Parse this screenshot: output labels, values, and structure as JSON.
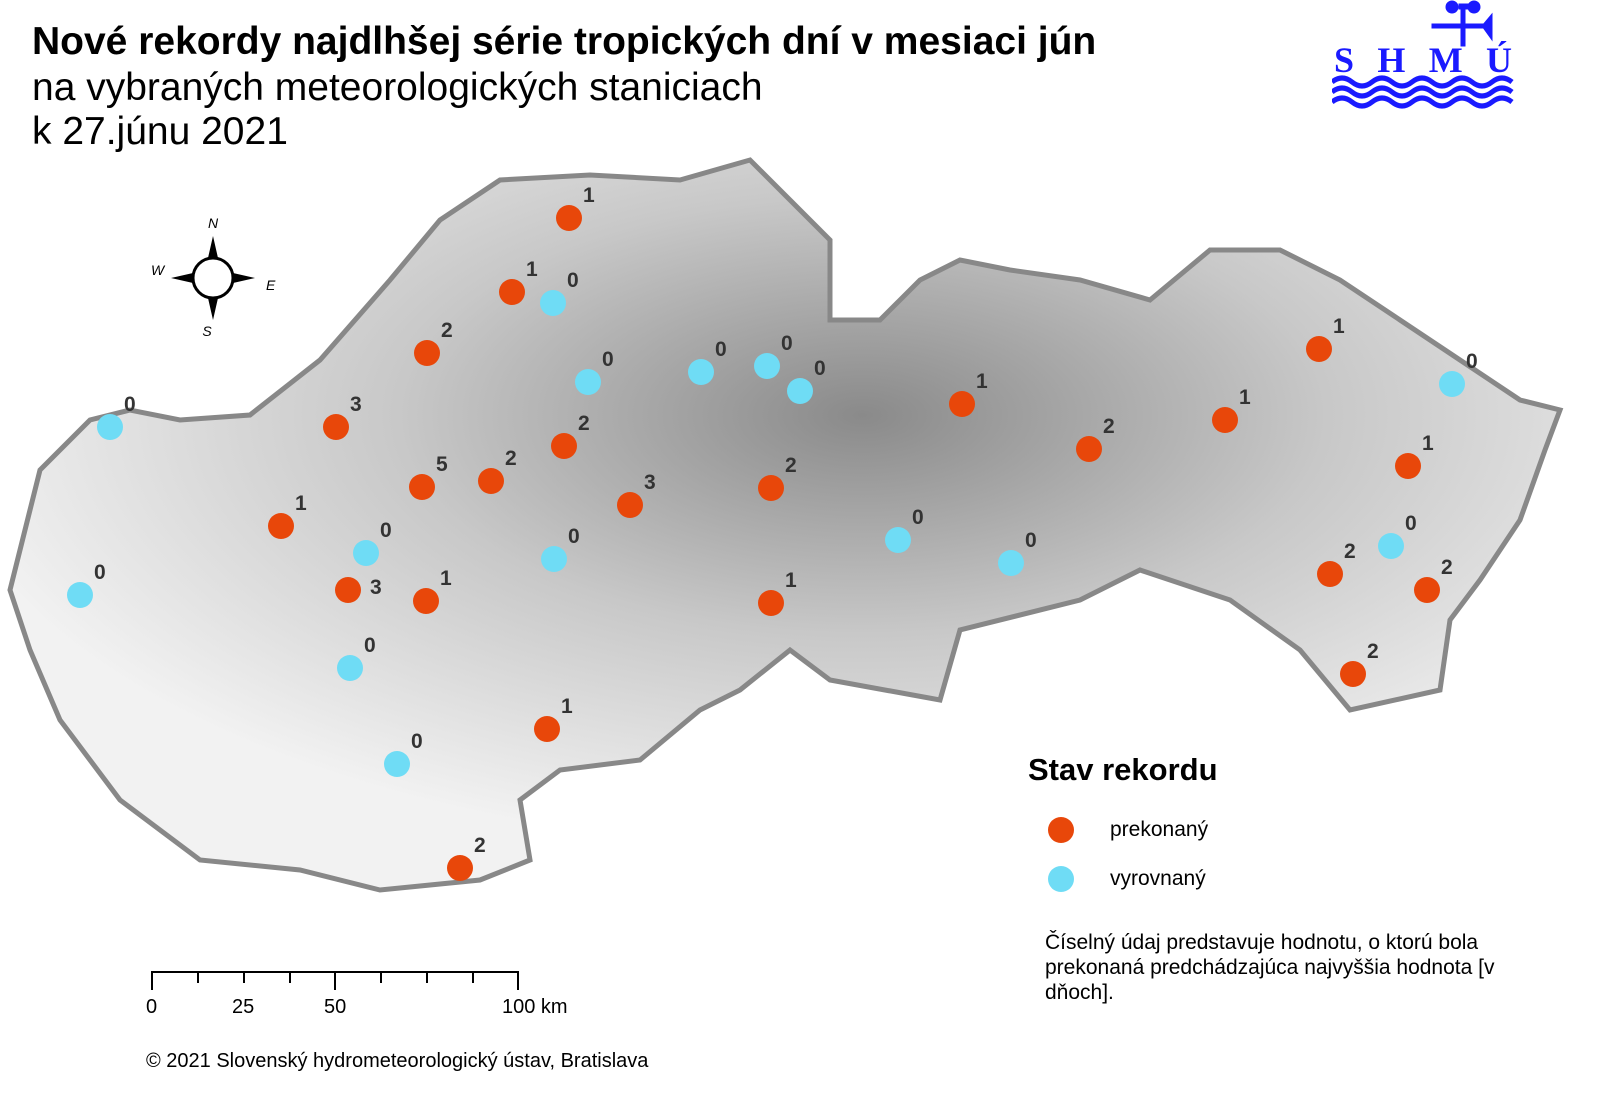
{
  "title": {
    "line1": "Nové rekordy najdlhšej série tropických dní v mesiaci jún",
    "line2": "na vybraných meteorologických staniciach",
    "line3": "k 27.júnu 2021"
  },
  "logo": {
    "text": "SHMÚ"
  },
  "compass": {
    "n": "N",
    "s": "S",
    "e": "E",
    "w": "W"
  },
  "legend": {
    "title": "Stav rekordu",
    "items": [
      {
        "label": "prekonaný",
        "color": "#e8470a"
      },
      {
        "label": "vyrovnaný",
        "color": "#6fdcf5"
      }
    ],
    "note": "Číselný údaj predstavuje hodnotu, o ktorú bola prekonaná predchádzajúca najvyššia hodnota [v dňoch]."
  },
  "scale": {
    "labels": [
      "0",
      "25",
      "50",
      "100 km"
    ]
  },
  "copyright": "© 2021 Slovenský hydrometeorologický ústav, Bratislava",
  "stations": [
    {
      "status": "prekonaný",
      "value": 1
    },
    {
      "status": "prekonaný",
      "value": 1
    },
    {
      "status": "vyrovnaný",
      "value": 0
    },
    {
      "status": "prekonaný",
      "value": 2
    },
    {
      "status": "vyrovnaný",
      "value": 0
    },
    {
      "status": "vyrovnaný",
      "value": 0
    },
    {
      "status": "vyrovnaný",
      "value": 0
    },
    {
      "status": "vyrovnaný",
      "value": 0
    },
    {
      "status": "vyrovnaný",
      "value": 0
    },
    {
      "status": "prekonaný",
      "value": 3
    },
    {
      "status": "prekonaný",
      "value": 2
    },
    {
      "status": "prekonaný",
      "value": 5
    },
    {
      "status": "prekonaný",
      "value": 2
    },
    {
      "status": "prekonaný",
      "value": 3
    },
    {
      "status": "prekonaný",
      "value": 2
    },
    {
      "status": "prekonaný",
      "value": 1
    },
    {
      "status": "vyrovnaný",
      "value": 0
    },
    {
      "status": "vyrovnaný",
      "value": 0
    },
    {
      "status": "vyrovnaný",
      "value": 0
    },
    {
      "status": "prekonaný",
      "value": 3
    },
    {
      "status": "prekonaný",
      "value": 1
    },
    {
      "status": "prekonaný",
      "value": 1
    },
    {
      "status": "vyrovnaný",
      "value": 0
    },
    {
      "status": "prekonaný",
      "value": 1
    },
    {
      "status": "vyrovnaný",
      "value": 0
    },
    {
      "status": "prekonaný",
      "value": 2
    },
    {
      "status": "prekonaný",
      "value": 1
    },
    {
      "status": "prekonaný",
      "value": 2
    },
    {
      "status": "prekonaný",
      "value": 1
    },
    {
      "status": "prekonaný",
      "value": 1
    },
    {
      "status": "vyrovnaný",
      "value": 0
    },
    {
      "status": "prekonaný",
      "value": 1
    },
    {
      "status": "vyrovnaný",
      "value": 0
    },
    {
      "status": "vyrovnaný",
      "value": 0
    },
    {
      "status": "vyrovnaný",
      "value": 0
    },
    {
      "status": "prekonaný",
      "value": 2
    },
    {
      "status": "prekonaný",
      "value": 2
    },
    {
      "status": "prekonaný",
      "value": 2
    }
  ]
}
